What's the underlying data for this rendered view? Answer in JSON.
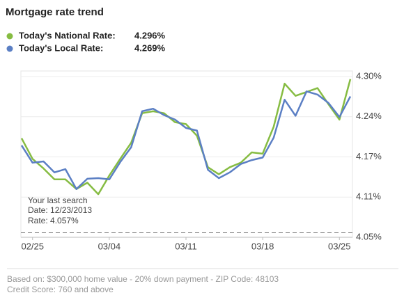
{
  "chart_data": {
    "type": "line",
    "title": "Mortgage rate trend",
    "categories": [
      null,
      "02/25",
      null,
      null,
      null,
      null,
      null,
      null,
      "03/04",
      null,
      null,
      null,
      null,
      null,
      null,
      "03/11",
      null,
      null,
      null,
      null,
      null,
      null,
      "03/18",
      null,
      null,
      null,
      null,
      null,
      null,
      "03/25",
      null
    ],
    "series": [
      {
        "name": "Today's National Rate:",
        "current": "4.296%",
        "color": "#86bc42",
        "values": [
          4.204,
          4.172,
          4.157,
          4.14,
          4.14,
          4.125,
          4.135,
          4.117,
          4.146,
          4.172,
          4.197,
          4.243,
          4.246,
          4.243,
          4.229,
          4.226,
          4.208,
          4.159,
          4.148,
          4.159,
          4.166,
          4.182,
          4.18,
          4.222,
          4.289,
          4.27,
          4.276,
          4.282,
          4.257,
          4.233,
          4.296
        ]
      },
      {
        "name": "Today's Local Rate:",
        "current": "4.269%",
        "color": "#5b7fc4",
        "values": [
          4.193,
          4.166,
          4.168,
          4.151,
          4.156,
          4.125,
          4.141,
          4.142,
          4.14,
          4.167,
          4.19,
          4.246,
          4.25,
          4.24,
          4.233,
          4.22,
          4.216,
          4.155,
          4.142,
          4.151,
          4.164,
          4.17,
          4.174,
          4.205,
          4.264,
          4.239,
          4.277,
          4.272,
          4.259,
          4.237,
          4.269
        ]
      }
    ],
    "ylim": [
      4.05,
      4.3
    ],
    "yticks": [
      {
        "value": 4.05,
        "label": "4.05%"
      },
      {
        "value": 4.1125,
        "label": "4.11%"
      },
      {
        "value": 4.175,
        "label": "4.17%"
      },
      {
        "value": 4.2375,
        "label": "4.24%"
      },
      {
        "value": 4.3,
        "label": "4.30%"
      }
    ],
    "grid": true,
    "last_search": {
      "title": "Your last search",
      "date": "Date: 12/23/2013",
      "value": 4.057,
      "label": "Rate: 4.057%"
    },
    "footer": [
      "Based on: $300,000 home value - 20% down payment - ZIP Code: 48103",
      "Credit Score: 760 and above"
    ]
  }
}
